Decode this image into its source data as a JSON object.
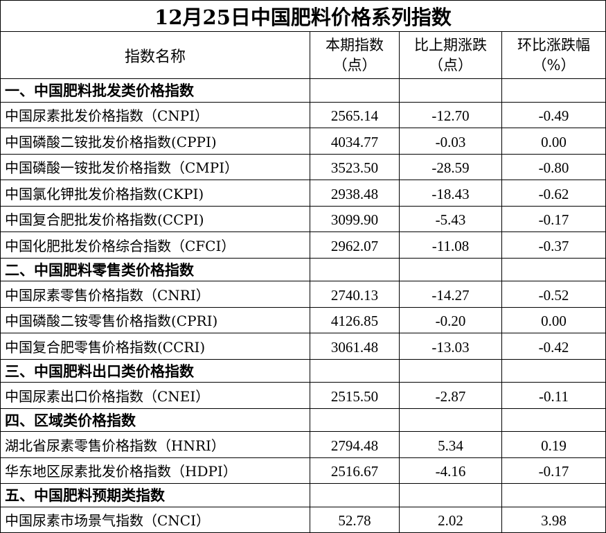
{
  "title": "12月25日中国肥料价格系列指数",
  "headers": {
    "name": "指数名称",
    "current_line1": "本期指数",
    "current_line2": "（点）",
    "change_line1": "比上期涨跌",
    "change_line2": "（点）",
    "pct_line1": "环比涨跌幅",
    "pct_line2": "（%）"
  },
  "sections": [
    {
      "title": "一、中国肥料批发类价格指数",
      "rows": [
        {
          "name": "中国尿素批发价格指数（CNPI）",
          "current": "2565.14",
          "change": "-12.70",
          "pct": "-0.49"
        },
        {
          "name": "中国磷酸二铵批发价格指数(CPPI)",
          "current": "4034.77",
          "change": "-0.03",
          "pct": "0.00"
        },
        {
          "name": "中国磷酸一铵批发价格指数（CMPI）",
          "current": "3523.50",
          "change": "-28.59",
          "pct": "-0.80"
        },
        {
          "name": "中国氯化钾批发价格指数(CKPI)",
          "current": "2938.48",
          "change": "-18.43",
          "pct": "-0.62"
        },
        {
          "name": "中国复合肥批发价格指数(CCPI)",
          "current": "3099.90",
          "change": "-5.43",
          "pct": "-0.17"
        },
        {
          "name": "中国化肥批发价格综合指数（CFCI）",
          "current": "2962.07",
          "change": "-11.08",
          "pct": "-0.37"
        }
      ]
    },
    {
      "title": "二、中国肥料零售类价格指数",
      "rows": [
        {
          "name": "中国尿素零售价格指数（CNRI）",
          "current": "2740.13",
          "change": "-14.27",
          "pct": "-0.52"
        },
        {
          "name": "中国磷酸二铵零售价格指数(CPRI)",
          "current": "4126.85",
          "change": "-0.20",
          "pct": "0.00"
        },
        {
          "name": "中国复合肥零售价格指数(CCRI)",
          "current": "3061.48",
          "change": "-13.03",
          "pct": "-0.42"
        }
      ]
    },
    {
      "title": "三、中国肥料出口类价格指数",
      "rows": [
        {
          "name": "中国尿素出口价格指数（CNEI）",
          "current": "2515.50",
          "change": "-2.87",
          "pct": "-0.11"
        }
      ]
    },
    {
      "title": "四、区域类价格指数",
      "rows": [
        {
          "name": "湖北省尿素零售价格指数（HNRI）",
          "current": "2794.48",
          "change": "5.34",
          "pct": "0.19"
        },
        {
          "name": "华东地区尿素批发价格指数（HDPI）",
          "current": "2516.67",
          "change": "-4.16",
          "pct": "-0.17"
        }
      ]
    },
    {
      "title": "五、中国肥料预期类指数",
      "rows": [
        {
          "name": "中国尿素市场景气指数（CNCI）",
          "current": "52.78",
          "change": "2.02",
          "pct": "3.98"
        }
      ]
    }
  ]
}
